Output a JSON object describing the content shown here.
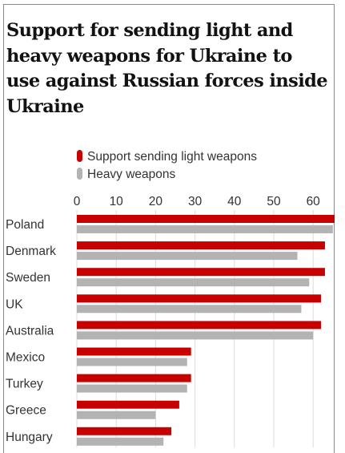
{
  "chart_data": {
    "type": "bar",
    "orientation": "horizontal",
    "title": "Support for sending light and heavy weapons for Ukraine to use against Russian forces inside Ukraine",
    "categories": [
      "Poland",
      "Denmark",
      "Sweden",
      "UK",
      "Australia",
      "Mexico",
      "Turkey",
      "Greece",
      "Hungary"
    ],
    "series": [
      {
        "name": "Support sending light weapons",
        "color": "#c70000",
        "values": [
          66,
          63,
          63,
          62,
          62,
          29,
          29,
          26,
          24
        ]
      },
      {
        "name": "Heavy weapons",
        "color": "#b3b3b3",
        "values": [
          65,
          56,
          59,
          57,
          60,
          28,
          28,
          20,
          22
        ]
      }
    ],
    "x_ticks": [
      "0",
      "10",
      "20",
      "30",
      "40",
      "50",
      "60"
    ],
    "xlim": [
      0,
      66
    ],
    "grid": true,
    "legend_position": "top-left"
  }
}
